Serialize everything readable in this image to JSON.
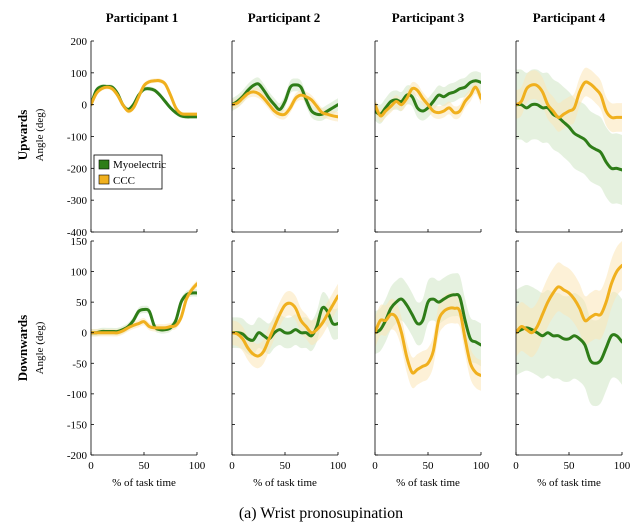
{
  "caption": "(a) Wrist pronosupination",
  "colors": {
    "myoelectric": "#2e7d18",
    "ccc": "#f0b01e",
    "myo_band": "#cfe5c4",
    "ccc_band": "#fbe6b6"
  },
  "chart_data": {
    "type": "line",
    "column_titles": [
      "Participant 1",
      "Participant 2",
      "Participant 3",
      "Participant 4"
    ],
    "row_titles": [
      "Upwards",
      "Downwards"
    ],
    "ylabel": "Angle (deg)",
    "xlabel": "% of task time",
    "xlim": [
      0,
      100
    ],
    "xticks": [
      0,
      50,
      100
    ],
    "legend": {
      "placement": "left-middle of row 1, column 1",
      "entries": [
        "Myoelectric",
        "CCC"
      ]
    },
    "rows": [
      {
        "row": "Upwards",
        "ylim": [
          -400,
          200
        ],
        "yticks": [
          200,
          100,
          0,
          -100,
          -200,
          -300,
          -400
        ],
        "panels": [
          {
            "participant": "Participant 1",
            "series": [
              {
                "name": "Myoelectric",
                "x": [
                  0,
                  5,
                  10,
                  15,
                  20,
                  25,
                  30,
                  35,
                  40,
                  45,
                  50,
                  55,
                  60,
                  65,
                  70,
                  75,
                  80,
                  85,
                  90,
                  95,
                  100
                ],
                "y": [
                  0,
                  45,
                  57,
                  57,
                  55,
                  35,
                  0,
                  -15,
                  0,
                  30,
                  48,
                  50,
                  45,
                  30,
                  10,
                  -10,
                  -25,
                  -35,
                  -38,
                  -38,
                  -38
                ],
                "band": 7
              },
              {
                "name": "CCC",
                "x": [
                  0,
                  5,
                  10,
                  15,
                  20,
                  25,
                  30,
                  35,
                  40,
                  45,
                  50,
                  55,
                  60,
                  65,
                  70,
                  75,
                  80,
                  85,
                  90,
                  95,
                  100
                ],
                "y": [
                  0,
                  35,
                  50,
                  55,
                  50,
                  30,
                  0,
                  -20,
                  -10,
                  25,
                  60,
                  72,
                  75,
                  75,
                  65,
                  30,
                  -10,
                  -28,
                  -30,
                  -30,
                  -30
                ],
                "band": 7
              }
            ]
          },
          {
            "participant": "Participant 2",
            "series": [
              {
                "name": "Myoelectric",
                "x": [
                  0,
                  5,
                  10,
                  15,
                  20,
                  25,
                  30,
                  35,
                  40,
                  45,
                  50,
                  55,
                  60,
                  65,
                  70,
                  75,
                  80,
                  85,
                  90,
                  95,
                  100
                ],
                "y": [
                  0,
                  10,
                  25,
                  45,
                  60,
                  65,
                  45,
                  20,
                  0,
                  -15,
                  10,
                  55,
                  62,
                  55,
                  15,
                  -20,
                  -30,
                  -30,
                  -20,
                  -10,
                  0
                ],
                "band": 20
              },
              {
                "name": "CCC",
                "x": [
                  0,
                  5,
                  10,
                  15,
                  20,
                  25,
                  30,
                  35,
                  40,
                  45,
                  50,
                  55,
                  60,
                  65,
                  70,
                  75,
                  80,
                  85,
                  90,
                  95,
                  100
                ],
                "y": [
                  0,
                  5,
                  20,
                  35,
                  40,
                  35,
                  20,
                  0,
                  -20,
                  -30,
                  -30,
                  -10,
                  20,
                  30,
                  25,
                  15,
                  -5,
                  -25,
                  -30,
                  -35,
                  -38
                ],
                "band": 15
              }
            ]
          },
          {
            "participant": "Participant 3",
            "series": [
              {
                "name": "Myoelectric",
                "x": [
                  0,
                  5,
                  10,
                  15,
                  20,
                  25,
                  30,
                  35,
                  40,
                  45,
                  50,
                  55,
                  60,
                  65,
                  70,
                  75,
                  80,
                  85,
                  90,
                  95,
                  100
                ],
                "y": [
                  -20,
                  -30,
                  -10,
                  10,
                  15,
                  10,
                  30,
                  25,
                  -10,
                  -20,
                  -10,
                  10,
                  30,
                  25,
                  35,
                  40,
                  50,
                  55,
                  70,
                  75,
                  70
                ],
                "band": 30
              },
              {
                "name": "CCC",
                "x": [
                  0,
                  5,
                  10,
                  15,
                  20,
                  25,
                  30,
                  35,
                  40,
                  45,
                  50,
                  55,
                  60,
                  65,
                  70,
                  75,
                  80,
                  85,
                  90,
                  95,
                  100
                ],
                "y": [
                  0,
                  -35,
                  -20,
                  -5,
                  10,
                  0,
                  20,
                  50,
                  45,
                  20,
                  0,
                  -20,
                  -25,
                  -20,
                  -10,
                  -25,
                  -20,
                  10,
                  30,
                  55,
                  20
                ],
                "band": 20
              }
            ]
          },
          {
            "participant": "Participant 4",
            "series": [
              {
                "name": "Myoelectric",
                "x": [
                  0,
                  5,
                  10,
                  15,
                  20,
                  25,
                  30,
                  35,
                  40,
                  45,
                  50,
                  55,
                  60,
                  65,
                  70,
                  75,
                  80,
                  85,
                  90,
                  95,
                  100
                ],
                "y": [
                  0,
                  0,
                  -10,
                  0,
                  0,
                  -10,
                  -10,
                  -30,
                  -40,
                  -55,
                  -70,
                  -90,
                  -100,
                  -110,
                  -130,
                  -140,
                  -150,
                  -180,
                  -200,
                  -200,
                  -205
                ],
                "band": 110
              },
              {
                "name": "CCC",
                "x": [
                  0,
                  5,
                  10,
                  15,
                  20,
                  25,
                  30,
                  35,
                  40,
                  45,
                  50,
                  55,
                  60,
                  65,
                  70,
                  75,
                  80,
                  85,
                  90,
                  95,
                  100
                ],
                "y": [
                  0,
                  10,
                  50,
                  62,
                  60,
                  40,
                  0,
                  -20,
                  -40,
                  -30,
                  -20,
                  -10,
                  40,
                  70,
                  65,
                  50,
                  30,
                  -20,
                  -40,
                  -40,
                  -40
                ],
                "band": 45
              }
            ]
          }
        ]
      },
      {
        "row": "Downwards",
        "ylim": [
          -200,
          150
        ],
        "yticks": [
          150,
          100,
          50,
          0,
          -50,
          -100,
          -150,
          -200
        ],
        "panels": [
          {
            "participant": "Participant 1",
            "series": [
              {
                "name": "Myoelectric",
                "x": [
                  0,
                  5,
                  10,
                  15,
                  20,
                  25,
                  30,
                  35,
                  40,
                  45,
                  50,
                  55,
                  60,
                  65,
                  70,
                  75,
                  80,
                  85,
                  90,
                  95,
                  100
                ],
                "y": [
                  0,
                  0,
                  2,
                  2,
                  2,
                  2,
                  5,
                  10,
                  20,
                  35,
                  38,
                  35,
                  10,
                  5,
                  5,
                  8,
                  20,
                  50,
                  62,
                  65,
                  65
                ],
                "band": 6
              },
              {
                "name": "CCC",
                "x": [
                  0,
                  5,
                  10,
                  15,
                  20,
                  25,
                  30,
                  35,
                  40,
                  45,
                  50,
                  55,
                  60,
                  65,
                  70,
                  75,
                  80,
                  85,
                  90,
                  95,
                  100
                ],
                "y": [
                  0,
                  0,
                  0,
                  0,
                  0,
                  0,
                  3,
                  8,
                  12,
                  15,
                  18,
                  10,
                  8,
                  8,
                  8,
                  10,
                  12,
                  25,
                  55,
                  70,
                  80
                ],
                "band": 6
              }
            ]
          },
          {
            "participant": "Participant 2",
            "series": [
              {
                "name": "Myoelectric",
                "x": [
                  0,
                  5,
                  10,
                  15,
                  20,
                  25,
                  30,
                  35,
                  40,
                  45,
                  50,
                  55,
                  60,
                  65,
                  70,
                  75,
                  80,
                  85,
                  90,
                  95,
                  100
                ],
                "y": [
                  0,
                  0,
                  -2,
                  -10,
                  -12,
                  0,
                  -5,
                  -10,
                  0,
                  5,
                  0,
                  0,
                  5,
                  0,
                  0,
                  -5,
                  10,
                  40,
                  35,
                  15,
                  15
                ],
                "band": 25
              },
              {
                "name": "CCC",
                "x": [
                  0,
                  5,
                  10,
                  15,
                  20,
                  25,
                  30,
                  35,
                  40,
                  45,
                  50,
                  55,
                  60,
                  65,
                  70,
                  75,
                  80,
                  85,
                  90,
                  95,
                  100
                ],
                "y": [
                  0,
                  -2,
                  -10,
                  -25,
                  -35,
                  -38,
                  -30,
                  -10,
                  10,
                  30,
                  45,
                  48,
                  40,
                  20,
                  10,
                  0,
                  5,
                  15,
                  30,
                  45,
                  60
                ],
                "band": 20
              }
            ]
          },
          {
            "participant": "Participant 3",
            "series": [
              {
                "name": "Myoelectric",
                "x": [
                  0,
                  5,
                  10,
                  15,
                  20,
                  25,
                  30,
                  35,
                  40,
                  45,
                  50,
                  55,
                  60,
                  65,
                  70,
                  75,
                  80,
                  85,
                  90,
                  95,
                  100
                ],
                "y": [
                  0,
                  5,
                  20,
                  40,
                  50,
                  55,
                  45,
                  30,
                  15,
                  20,
                  50,
                  55,
                  50,
                  55,
                  60,
                  62,
                  58,
                  20,
                  -10,
                  -15,
                  -20
                ],
                "band": 35
              },
              {
                "name": "CCC",
                "x": [
                  0,
                  5,
                  10,
                  15,
                  20,
                  25,
                  30,
                  35,
                  40,
                  45,
                  50,
                  55,
                  60,
                  65,
                  70,
                  75,
                  80,
                  85,
                  90,
                  95,
                  100
                ],
                "y": [
                  0,
                  20,
                  20,
                  30,
                  25,
                  0,
                  -40,
                  -65,
                  -60,
                  -55,
                  -50,
                  -30,
                  20,
                  35,
                  40,
                  40,
                  35,
                  -10,
                  -50,
                  -65,
                  -70
                ],
                "band": 25
              }
            ]
          },
          {
            "participant": "Participant 4",
            "series": [
              {
                "name": "Myoelectric",
                "x": [
                  0,
                  5,
                  10,
                  15,
                  20,
                  25,
                  30,
                  35,
                  40,
                  45,
                  50,
                  55,
                  60,
                  65,
                  70,
                  75,
                  80,
                  85,
                  90,
                  95,
                  100
                ],
                "y": [
                  0,
                  5,
                  8,
                  5,
                  0,
                  -5,
                  0,
                  -5,
                  -5,
                  -10,
                  -10,
                  -5,
                  -10,
                  -20,
                  -45,
                  -50,
                  -45,
                  -25,
                  -5,
                  -5,
                  -15
                ],
                "band": 70
              },
              {
                "name": "CCC",
                "x": [
                  0,
                  5,
                  10,
                  15,
                  20,
                  25,
                  30,
                  35,
                  40,
                  45,
                  50,
                  55,
                  60,
                  65,
                  70,
                  75,
                  80,
                  85,
                  90,
                  95,
                  100
                ],
                "y": [
                  0,
                  10,
                  5,
                  0,
                  10,
                  30,
                  50,
                  65,
                  75,
                  70,
                  65,
                  55,
                  40,
                  20,
                  25,
                  30,
                  30,
                  50,
                  80,
                  100,
                  110
                ],
                "band": 40
              }
            ]
          }
        ]
      }
    ]
  }
}
